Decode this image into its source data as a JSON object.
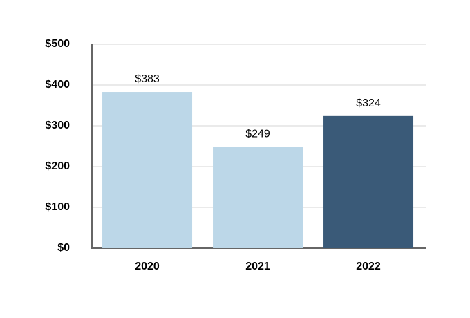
{
  "chart_data": {
    "type": "bar",
    "categories": [
      "2020",
      "2021",
      "2022"
    ],
    "values": [
      383,
      249,
      324
    ],
    "value_labels": [
      "$383",
      "$249",
      "$324"
    ],
    "colors": [
      "#bcd7e8",
      "#bcd7e8",
      "#3a5a78"
    ],
    "ylim": [
      0,
      500
    ],
    "yticks": [
      {
        "value": 0,
        "label": "$0"
      },
      {
        "value": 100,
        "label": "$100"
      },
      {
        "value": 200,
        "label": "$200"
      },
      {
        "value": 300,
        "label": "$300"
      },
      {
        "value": 400,
        "label": "$400"
      },
      {
        "value": 500,
        "label": "$500"
      }
    ],
    "grid": true
  }
}
